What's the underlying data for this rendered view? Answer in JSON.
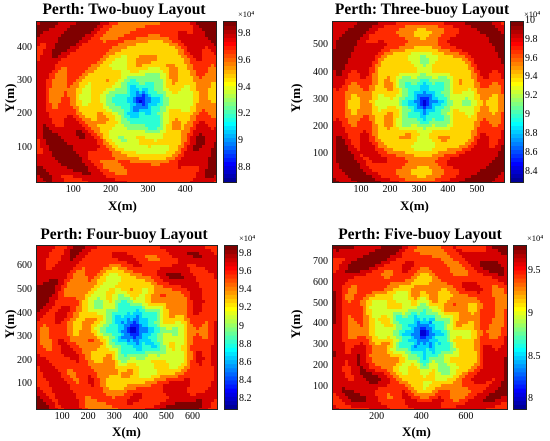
{
  "chart_data": [
    {
      "type": "heatmap",
      "title": "Perth: Two-buoy Layout",
      "xlabel": "X(m)",
      "ylabel": "Y(m)",
      "xticks": [
        "100",
        "200",
        "300",
        "400"
      ],
      "yticks": [
        "100",
        "200",
        "300",
        "400"
      ],
      "xlim": [
        0,
        480
      ],
      "ylim": [
        0,
        480
      ],
      "colorbar": {
        "ticks": [
          "9.8",
          "9.6",
          "9.4",
          "9.2",
          "9",
          "8.8"
        ],
        "range": [
          8.7,
          9.9
        ],
        "exponent": "×10⁴"
      },
      "trough": {
        "x": 275,
        "y": 250,
        "value": 88000
      }
    },
    {
      "type": "heatmap",
      "title": "Perth: Three-buoy Layout",
      "xlabel": "X(m)",
      "ylabel": "Y(m)",
      "xticks": [
        "100",
        "200",
        "300",
        "400",
        "500"
      ],
      "yticks": [
        "100",
        "200",
        "300",
        "400",
        "500"
      ],
      "xlim": [
        0,
        590
      ],
      "ylim": [
        0,
        590
      ],
      "colorbar": {
        "ticks": [
          "10",
          "9.8",
          "9.6",
          "9.4",
          "9.2",
          "9",
          "8.8",
          "8.6",
          "8.4"
        ],
        "range": [
          8.3,
          10.0
        ],
        "exponent": "×10⁴"
      },
      "trough": {
        "x": 310,
        "y": 300,
        "value": 84000
      }
    },
    {
      "type": "heatmap",
      "title": "Perth: Four-buoy Layout",
      "xlabel": "X(m)",
      "ylabel": "Y(m)",
      "xticks": [
        "100",
        "200",
        "300",
        "400",
        "500",
        "600"
      ],
      "yticks": [
        "100",
        "200",
        "300",
        "400",
        "500",
        "600"
      ],
      "xlim": [
        0,
        690
      ],
      "ylim": [
        0,
        690
      ],
      "colorbar": {
        "ticks": [
          "9.8",
          "9.6",
          "9.4",
          "9.2",
          "9",
          "8.8",
          "8.6",
          "8.4",
          "8.2"
        ],
        "range": [
          8.1,
          9.9
        ],
        "exponent": "×10⁴"
      },
      "trough": {
        "x": 360,
        "y": 340,
        "value": 82000
      }
    },
    {
      "type": "heatmap",
      "title": "Perth: Five-buoy Layout",
      "xlabel": "X(m)",
      "ylabel": "Y(m)",
      "xticks": [
        "200",
        "400",
        "600"
      ],
      "yticks": [
        "100",
        "200",
        "300",
        "400",
        "500",
        "600",
        "700"
      ],
      "xlim": [
        0,
        780
      ],
      "ylim": [
        0,
        780
      ],
      "colorbar": {
        "ticks": [
          "9.5",
          "9",
          "8.5",
          "8"
        ],
        "range": [
          7.9,
          9.8
        ],
        "exponent": "×10⁴"
      },
      "trough": {
        "x": 400,
        "y": 370,
        "value": 80000
      }
    }
  ]
}
